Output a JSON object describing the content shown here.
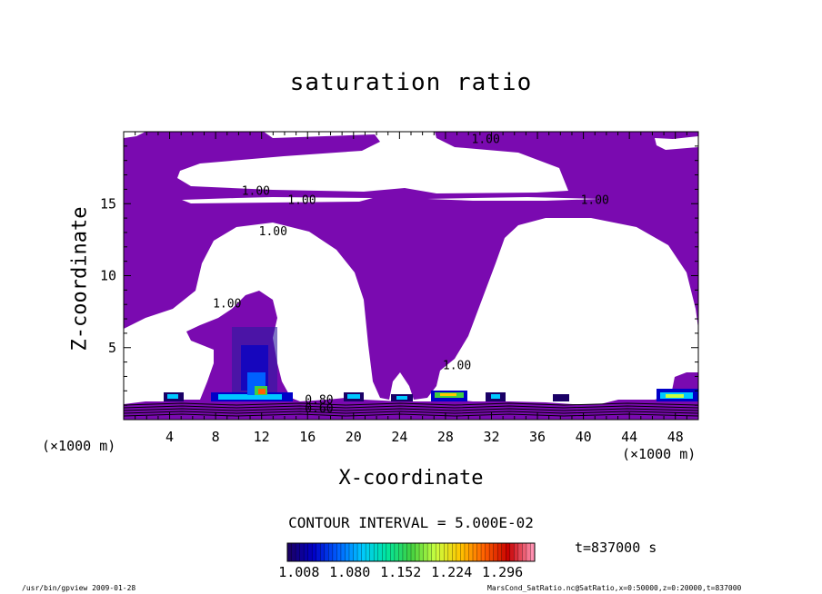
{
  "title": "saturation ratio",
  "xlabel": "X-coordinate",
  "ylabel": "Z-coordinate",
  "x_unit_left": "(×1000 m)",
  "x_unit_right": "(×1000 m)",
  "contour_interval": "CONTOUR INTERVAL = 5.000E-02",
  "time_label": "t=837000 s",
  "footer_left": "/usr/bin/gpview  2009-01-28",
  "footer_right": "MarsCond_SatRatio.nc@SatRatio,x=0:50000,z=0:20000,t=837000",
  "colors": {
    "fill": "#7a0ab0",
    "background": "#ffffff",
    "colormap": [
      "#1a0066",
      "#0000c8",
      "#0060ff",
      "#00c8ff",
      "#00e6a0",
      "#40d040",
      "#c8ff40",
      "#ffc800",
      "#ff6000",
      "#c80000",
      "#ff90b0"
    ]
  },
  "chart_data": {
    "type": "heatmap",
    "title": "saturation ratio",
    "xlabel": "X-coordinate",
    "ylabel": "Z-coordinate",
    "xlim": [
      0,
      50
    ],
    "ylim": [
      0,
      20
    ],
    "x_ticks": [
      4,
      8,
      12,
      16,
      20,
      24,
      28,
      32,
      36,
      40,
      44,
      48
    ],
    "y_ticks": [
      5,
      10,
      15
    ],
    "contour_labels": [
      {
        "text": "1.00",
        "x": 31.5,
        "z": 19.2
      },
      {
        "text": "1.00",
        "x": 11.5,
        "z": 15.6
      },
      {
        "text": "1.00",
        "x": 15.5,
        "z": 15.0
      },
      {
        "text": "1.00",
        "x": 41.0,
        "z": 15.0
      },
      {
        "text": "1.00",
        "x": 13.0,
        "z": 12.8
      },
      {
        "text": "1.00",
        "x": 9.0,
        "z": 7.8
      },
      {
        "text": "1.00",
        "x": 29.0,
        "z": 3.5
      },
      {
        "text": "0.80",
        "x": 17.0,
        "z": 1.1
      },
      {
        "text": "0.60",
        "x": 17.0,
        "z": 0.5
      }
    ],
    "colorbar": {
      "ticks": [
        1.008,
        1.08,
        1.152,
        1.224,
        1.296
      ],
      "tick_labels": [
        "1.008",
        "1.080",
        "1.152",
        "1.224",
        "1.296"
      ],
      "min": 1.0,
      "max": 1.35
    },
    "contour_interval": 0.05,
    "time": "t=837000 s"
  }
}
